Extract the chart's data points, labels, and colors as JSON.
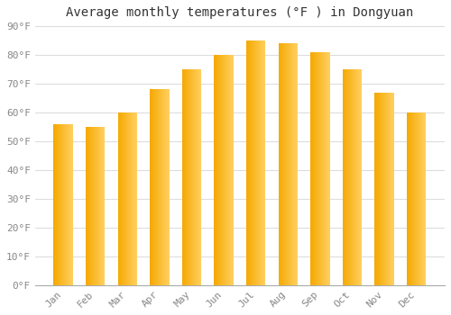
{
  "title": "Average monthly temperatures (°F ) in Dongyuan",
  "months": [
    "Jan",
    "Feb",
    "Mar",
    "Apr",
    "May",
    "Jun",
    "Jul",
    "Aug",
    "Sep",
    "Oct",
    "Nov",
    "Dec"
  ],
  "temperatures": [
    56,
    55,
    60,
    68,
    75,
    80,
    85,
    84,
    81,
    75,
    67,
    60
  ],
  "bar_color_left": "#F5A800",
  "bar_color_right": "#FFD060",
  "ylim": [
    0,
    90
  ],
  "yticks": [
    0,
    10,
    20,
    30,
    40,
    50,
    60,
    70,
    80,
    90
  ],
  "background_color": "#FFFFFF",
  "plot_bg_color": "#FFFFFF",
  "grid_color": "#DDDDDD",
  "title_fontsize": 10,
  "tick_fontsize": 8,
  "font_family": "monospace",
  "bar_width": 0.6,
  "n_grad": 80
}
